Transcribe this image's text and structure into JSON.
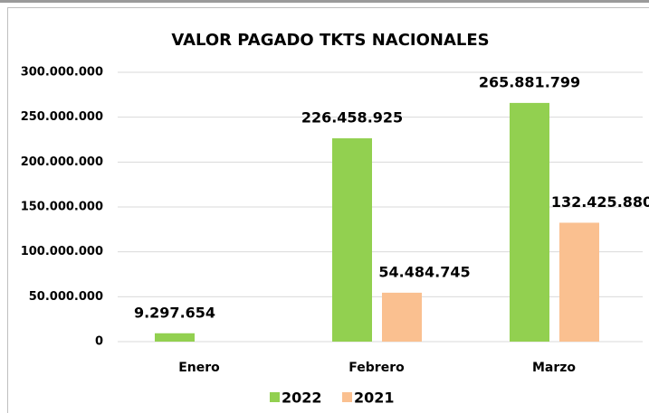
{
  "chart_data": {
    "type": "bar",
    "title": "VALOR PAGADO TKTS NACIONALES",
    "categories": [
      "Enero",
      "Febrero",
      "Marzo"
    ],
    "series": [
      {
        "name": "2022",
        "color": "#92d050",
        "values": [
          9297654,
          226458925,
          265881799
        ],
        "value_labels": [
          "9.297.654",
          "226.458.925",
          "265.881.799"
        ]
      },
      {
        "name": "2021",
        "color": "#fac090",
        "values": [
          null,
          54484745,
          132425880
        ],
        "value_labels": [
          null,
          "54.484.745",
          "132.425.880"
        ]
      }
    ],
    "ylim": [
      0,
      300000000
    ],
    "yticks": [
      0,
      {
        "value": 50000000,
        "label": "50.000.000"
      },
      {
        "value": 100000000,
        "label": "100.000.000"
      },
      {
        "value": 150000000,
        "label": "150.000.000"
      },
      {
        "value": 200000000,
        "label": "200.000.000"
      },
      {
        "value": 250000000,
        "label": "250.000.000"
      },
      {
        "value": 300000000,
        "label": "300.000.000"
      }
    ],
    "grid": true,
    "legend": "bottom"
  }
}
